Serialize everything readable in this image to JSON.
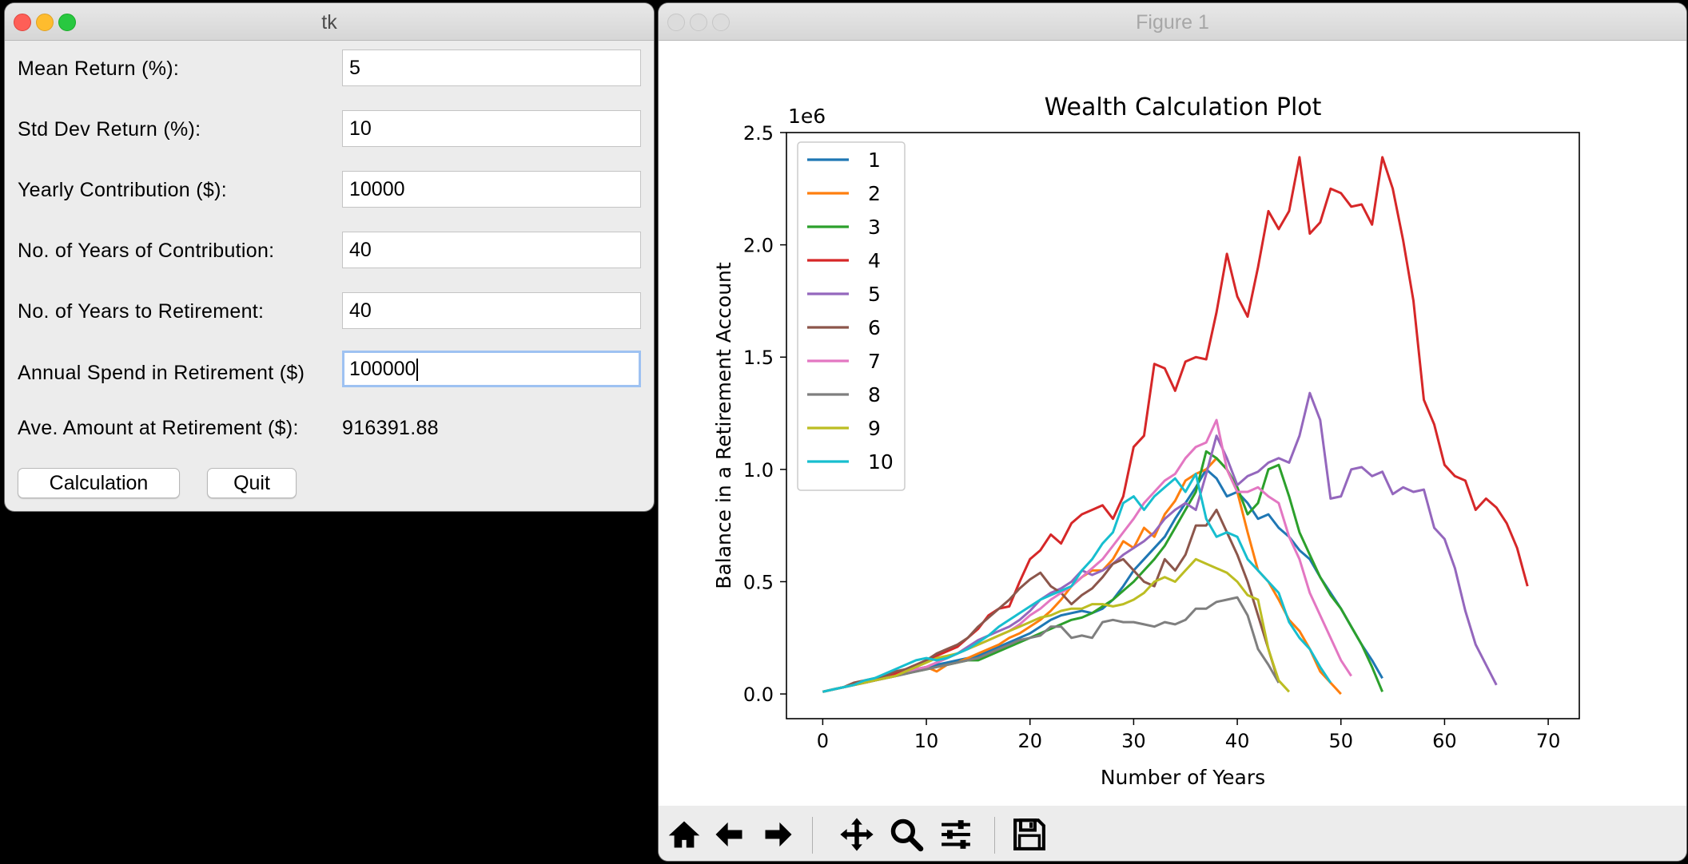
{
  "tk_window": {
    "title": "tk",
    "fields": [
      {
        "label": "Mean Return (%):",
        "value": "5"
      },
      {
        "label": "Std Dev Return (%):",
        "value": "10"
      },
      {
        "label": "Yearly Contribution ($):",
        "value": "10000"
      },
      {
        "label": "No. of Years of Contribution:",
        "value": "40"
      },
      {
        "label": "No. of Years to Retirement:",
        "value": "40"
      },
      {
        "label": "Annual Spend in Retirement ($)",
        "value": "100000"
      }
    ],
    "result_label": "Ave. Amount at Retirement ($):",
    "result_value": "916391.88",
    "buttons": {
      "calculate": "Calculation",
      "quit": "Quit"
    }
  },
  "figure_window": {
    "title": "Figure 1",
    "toolbar": [
      "home-icon",
      "back-arrow-icon",
      "forward-arrow-icon",
      "pan-icon",
      "zoom-icon",
      "configure-subplots-icon",
      "save-icon"
    ]
  },
  "colors": {
    "close": "#fe5f57",
    "minimize": "#febc2e",
    "maximize": "#28c840",
    "series": [
      "#1f77b4",
      "#ff7f0e",
      "#2ca02c",
      "#d62728",
      "#9467bd",
      "#8c564b",
      "#e377c2",
      "#7f7f7f",
      "#bcbd22",
      "#17becf"
    ]
  },
  "chart_data": {
    "type": "line",
    "title": "Wealth Calculation Plot",
    "xlabel": "Number of Years",
    "ylabel": "Balance in a Retirement Account",
    "y_offset_label": "1e6",
    "xlim": [
      -3.5,
      73
    ],
    "ylim": [
      -0.11,
      2.5
    ],
    "xticks": [
      0,
      10,
      20,
      30,
      40,
      50,
      60,
      70
    ],
    "yticks": [
      0.0,
      0.5,
      1.0,
      1.5,
      2.0,
      2.5
    ],
    "ytick_labels": [
      "0.0",
      "0.5",
      "1.0",
      "1.5",
      "2.0",
      "2.5"
    ],
    "legend_position": "upper-left",
    "grid": false,
    "series": [
      {
        "name": "1",
        "x_start": 0,
        "values": [
          0.01,
          0.02,
          0.03,
          0.04,
          0.05,
          0.06,
          0.07,
          0.08,
          0.1,
          0.11,
          0.12,
          0.13,
          0.14,
          0.15,
          0.16,
          0.17,
          0.19,
          0.21,
          0.23,
          0.25,
          0.27,
          0.3,
          0.33,
          0.35,
          0.36,
          0.37,
          0.36,
          0.38,
          0.42,
          0.48,
          0.55,
          0.6,
          0.65,
          0.7,
          0.78,
          0.85,
          0.92,
          1.0,
          0.96,
          0.88,
          0.9,
          0.85,
          0.78,
          0.8,
          0.74,
          0.7,
          0.64,
          0.6,
          0.52,
          0.45,
          0.38,
          0.3,
          0.22,
          0.15,
          0.07
        ]
      },
      {
        "name": "2",
        "x_start": 0,
        "values": [
          0.01,
          0.02,
          0.03,
          0.04,
          0.05,
          0.06,
          0.07,
          0.08,
          0.1,
          0.11,
          0.12,
          0.1,
          0.13,
          0.14,
          0.16,
          0.18,
          0.2,
          0.22,
          0.25,
          0.27,
          0.3,
          0.33,
          0.37,
          0.42,
          0.48,
          0.52,
          0.55,
          0.55,
          0.6,
          0.68,
          0.65,
          0.74,
          0.7,
          0.8,
          0.86,
          0.95,
          0.98,
          1.0,
          1.05,
          1.0,
          0.9,
          0.72,
          0.55,
          0.5,
          0.42,
          0.33,
          0.28,
          0.2,
          0.1,
          0.05,
          0.0
        ]
      },
      {
        "name": "3",
        "x_start": 0,
        "values": [
          0.01,
          0.02,
          0.03,
          0.04,
          0.05,
          0.06,
          0.07,
          0.08,
          0.09,
          0.1,
          0.11,
          0.12,
          0.13,
          0.14,
          0.15,
          0.15,
          0.17,
          0.19,
          0.21,
          0.23,
          0.25,
          0.27,
          0.29,
          0.31,
          0.33,
          0.34,
          0.36,
          0.39,
          0.42,
          0.46,
          0.5,
          0.55,
          0.6,
          0.66,
          0.74,
          0.82,
          0.9,
          1.08,
          1.05,
          1.0,
          0.92,
          0.8,
          0.85,
          1.0,
          1.02,
          0.88,
          0.72,
          0.62,
          0.52,
          0.44,
          0.38,
          0.3,
          0.22,
          0.12,
          0.01
        ]
      },
      {
        "name": "4",
        "x_start": 0,
        "values": [
          0.01,
          0.02,
          0.03,
          0.04,
          0.05,
          0.06,
          0.08,
          0.09,
          0.11,
          0.13,
          0.15,
          0.17,
          0.19,
          0.21,
          0.25,
          0.29,
          0.35,
          0.38,
          0.39,
          0.5,
          0.6,
          0.64,
          0.71,
          0.67,
          0.76,
          0.8,
          0.82,
          0.84,
          0.78,
          0.88,
          1.1,
          1.15,
          1.47,
          1.45,
          1.35,
          1.48,
          1.5,
          1.49,
          1.7,
          1.96,
          1.77,
          1.68,
          1.9,
          2.15,
          2.07,
          2.15,
          2.39,
          2.05,
          2.1,
          2.25,
          2.23,
          2.17,
          2.18,
          2.09,
          2.39,
          2.25,
          2.02,
          1.75,
          1.31,
          1.2,
          1.02,
          0.97,
          0.95,
          0.82,
          0.87,
          0.83,
          0.76,
          0.65,
          0.48
        ]
      },
      {
        "name": "5",
        "x_start": 0,
        "values": [
          0.01,
          0.02,
          0.03,
          0.04,
          0.05,
          0.06,
          0.07,
          0.08,
          0.09,
          0.11,
          0.12,
          0.14,
          0.16,
          0.18,
          0.21,
          0.24,
          0.26,
          0.28,
          0.3,
          0.33,
          0.37,
          0.42,
          0.45,
          0.47,
          0.5,
          0.55,
          0.53,
          0.55,
          0.58,
          0.62,
          0.65,
          0.68,
          0.72,
          0.78,
          0.82,
          0.85,
          0.82,
          0.98,
          1.15,
          1.05,
          0.93,
          0.97,
          0.99,
          1.03,
          1.05,
          1.03,
          1.15,
          1.34,
          1.22,
          0.87,
          0.88,
          1.0,
          1.01,
          0.97,
          0.99,
          0.89,
          0.92,
          0.9,
          0.91,
          0.74,
          0.69,
          0.56,
          0.37,
          0.22,
          0.13,
          0.04
        ]
      },
      {
        "name": "6",
        "x_start": 0,
        "values": [
          0.01,
          0.02,
          0.03,
          0.05,
          0.06,
          0.07,
          0.08,
          0.1,
          0.11,
          0.13,
          0.15,
          0.18,
          0.2,
          0.22,
          0.25,
          0.3,
          0.34,
          0.38,
          0.42,
          0.47,
          0.51,
          0.54,
          0.48,
          0.45,
          0.4,
          0.44,
          0.47,
          0.52,
          0.58,
          0.6,
          0.55,
          0.5,
          0.48,
          0.6,
          0.55,
          0.62,
          0.75,
          0.75,
          0.82,
          0.72,
          0.62,
          0.5,
          0.35,
          0.2,
          0.05
        ]
      },
      {
        "name": "7",
        "x_start": 0,
        "values": [
          0.01,
          0.02,
          0.03,
          0.04,
          0.05,
          0.06,
          0.07,
          0.08,
          0.1,
          0.11,
          0.12,
          0.14,
          0.16,
          0.18,
          0.2,
          0.22,
          0.24,
          0.26,
          0.28,
          0.31,
          0.35,
          0.38,
          0.42,
          0.45,
          0.48,
          0.52,
          0.56,
          0.6,
          0.66,
          0.72,
          0.78,
          0.85,
          0.9,
          0.95,
          0.98,
          1.05,
          1.1,
          1.12,
          1.22,
          1.0,
          0.9,
          0.9,
          0.92,
          0.88,
          0.85,
          0.7,
          0.6,
          0.45,
          0.35,
          0.25,
          0.15,
          0.08
        ]
      },
      {
        "name": "8",
        "x_start": 0,
        "values": [
          0.01,
          0.02,
          0.03,
          0.04,
          0.05,
          0.06,
          0.07,
          0.08,
          0.09,
          0.1,
          0.11,
          0.12,
          0.13,
          0.14,
          0.15,
          0.16,
          0.18,
          0.2,
          0.22,
          0.24,
          0.25,
          0.26,
          0.3,
          0.3,
          0.25,
          0.26,
          0.25,
          0.32,
          0.33,
          0.32,
          0.32,
          0.31,
          0.3,
          0.32,
          0.31,
          0.33,
          0.38,
          0.38,
          0.41,
          0.42,
          0.43,
          0.35,
          0.2,
          0.13,
          0.05
        ]
      },
      {
        "name": "9",
        "x_start": 0,
        "values": [
          0.01,
          0.02,
          0.03,
          0.04,
          0.05,
          0.06,
          0.07,
          0.08,
          0.1,
          0.12,
          0.14,
          0.16,
          0.17,
          0.18,
          0.2,
          0.22,
          0.24,
          0.26,
          0.28,
          0.3,
          0.32,
          0.34,
          0.35,
          0.37,
          0.38,
          0.38,
          0.4,
          0.4,
          0.39,
          0.4,
          0.42,
          0.45,
          0.5,
          0.52,
          0.5,
          0.55,
          0.6,
          0.58,
          0.56,
          0.54,
          0.5,
          0.44,
          0.42,
          0.2,
          0.06,
          0.01
        ]
      },
      {
        "name": "10",
        "x_start": 0,
        "values": [
          0.01,
          0.02,
          0.03,
          0.04,
          0.06,
          0.07,
          0.09,
          0.11,
          0.13,
          0.15,
          0.16,
          0.15,
          0.16,
          0.18,
          0.2,
          0.23,
          0.26,
          0.3,
          0.33,
          0.36,
          0.39,
          0.42,
          0.44,
          0.46,
          0.48,
          0.55,
          0.6,
          0.67,
          0.72,
          0.85,
          0.88,
          0.82,
          0.88,
          0.92,
          0.96,
          0.9,
          0.98,
          0.78,
          0.7,
          0.72,
          0.7,
          0.6,
          0.55,
          0.5,
          0.45,
          0.32,
          0.25,
          0.2,
          0.12,
          0.05
        ]
      }
    ]
  }
}
